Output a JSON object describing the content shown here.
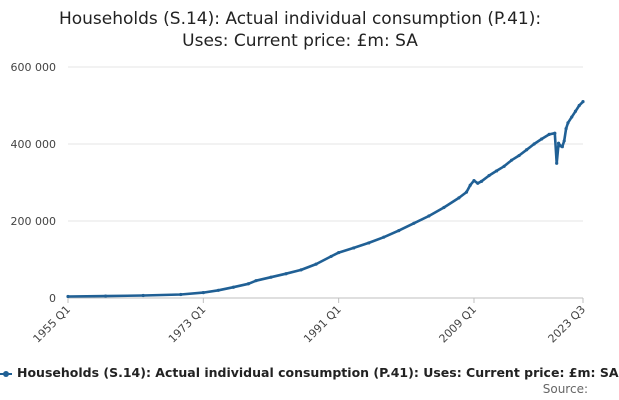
{
  "header": {
    "title_line1": "Households (S.14): Actual individual consumption (P.41):",
    "title_line2": "Uses: Current price: £m: SA"
  },
  "source_label": "Source:",
  "chart_data": {
    "type": "line",
    "title": "Households (S.14): Actual individual consumption (P.41): Uses: Current price: £m: SA",
    "xlabel": "",
    "ylabel": "",
    "x_range": [
      1955.0,
      2023.5
    ],
    "ylim": [
      0,
      600000
    ],
    "y_ticks": [
      0,
      200000,
      400000,
      600000
    ],
    "y_tick_labels": [
      "0",
      "200 000",
      "400 000",
      "600 000"
    ],
    "x_ticks": [
      1955.0,
      1973.0,
      1991.0,
      2009.0,
      2023.5
    ],
    "x_tick_labels": [
      "1955 Q1",
      "1973 Q1",
      "1991 Q1",
      "2009 Q1",
      "2023 Q3"
    ],
    "grid": "horizontal",
    "legend_position": "bottom",
    "series": [
      {
        "name": "Households (S.14): Actual individual consumption (P.41): Uses: Current price: £m: SA",
        "color": "#206095",
        "x": [
          1955.0,
          1960.0,
          1965.0,
          1970.0,
          1973.0,
          1975.0,
          1977.0,
          1979.0,
          1980.0,
          1982.0,
          1984.0,
          1986.0,
          1988.0,
          1990.0,
          1991.0,
          1993.0,
          1995.0,
          1997.0,
          1999.0,
          2001.0,
          2003.0,
          2005.0,
          2007.0,
          2008.0,
          2008.5,
          2009.0,
          2009.5,
          2010.0,
          2011.0,
          2012.0,
          2013.0,
          2014.0,
          2015.0,
          2016.0,
          2017.0,
          2018.0,
          2019.0,
          2019.75,
          2020.0,
          2020.25,
          2020.5,
          2020.75,
          2021.0,
          2021.25,
          2021.5,
          2022.0,
          2022.5,
          2023.0,
          2023.5
        ],
        "values": [
          4000,
          5000,
          6500,
          9000,
          14000,
          20000,
          28000,
          37000,
          45000,
          54000,
          63000,
          73000,
          88000,
          108000,
          118000,
          130000,
          143000,
          158000,
          175000,
          194000,
          213000,
          235000,
          260000,
          275000,
          293000,
          305000,
          298000,
          303000,
          318000,
          330000,
          342000,
          358000,
          370000,
          385000,
          400000,
          413000,
          425000,
          428000,
          350000,
          402000,
          395000,
          393000,
          408000,
          440000,
          455000,
          470000,
          485000,
          500000,
          510000
        ]
      }
    ]
  }
}
